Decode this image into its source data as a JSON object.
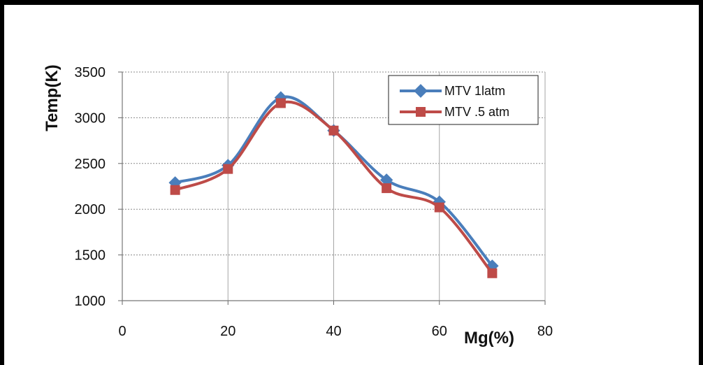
{
  "chart_data": {
    "type": "line",
    "title": "",
    "xlabel": "Mg(%)",
    "ylabel": "Temp(K)",
    "xlim": [
      0,
      80
    ],
    "ylim": [
      1000,
      3500
    ],
    "xticks": [
      "0",
      "20",
      "40",
      "60",
      "80"
    ],
    "yticks": [
      "1000",
      "1500",
      "2000",
      "2500",
      "3000",
      "3500"
    ],
    "grid": true,
    "legend_position": "top-right",
    "x": [
      10,
      20,
      30,
      40,
      50,
      60,
      70
    ],
    "series": [
      {
        "name": "MTV 1latm",
        "color": "#4a7ebb",
        "marker": "diamond",
        "values": [
          2290,
          2480,
          3220,
          2860,
          2320,
          2080,
          1380
        ]
      },
      {
        "name": "MTV .5 atm",
        "color": "#be4b48",
        "marker": "square",
        "values": [
          2210,
          2440,
          3160,
          2860,
          2230,
          2020,
          1300
        ]
      }
    ]
  }
}
